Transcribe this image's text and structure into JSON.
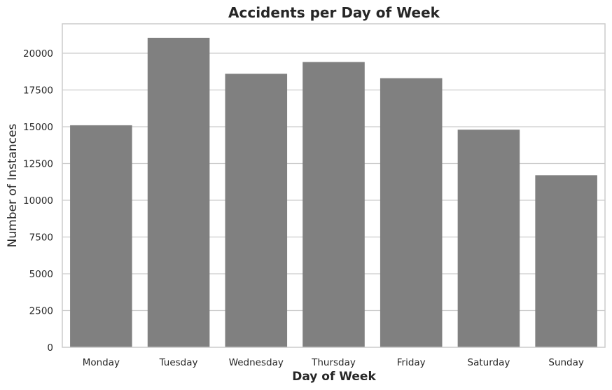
{
  "chart_data": {
    "type": "bar",
    "title": "Accidents per Day of Week",
    "xlabel": "Day of Week",
    "ylabel": "Number of Instances",
    "categories": [
      "Monday",
      "Tuesday",
      "Wednesday",
      "Thursday",
      "Friday",
      "Saturday",
      "Sunday"
    ],
    "values": [
      15100,
      21050,
      18600,
      19400,
      18300,
      14800,
      11700
    ],
    "ylim": [
      0,
      22000
    ],
    "yticks": [
      0,
      2500,
      5000,
      7500,
      10000,
      12500,
      15000,
      17500,
      20000
    ],
    "ytick_labels": [
      "0",
      "2500",
      "5000",
      "7500",
      "10000",
      "12500",
      "15000",
      "17500",
      "20000"
    ],
    "bar_color": "#808080",
    "grid": true,
    "legend": "none"
  }
}
